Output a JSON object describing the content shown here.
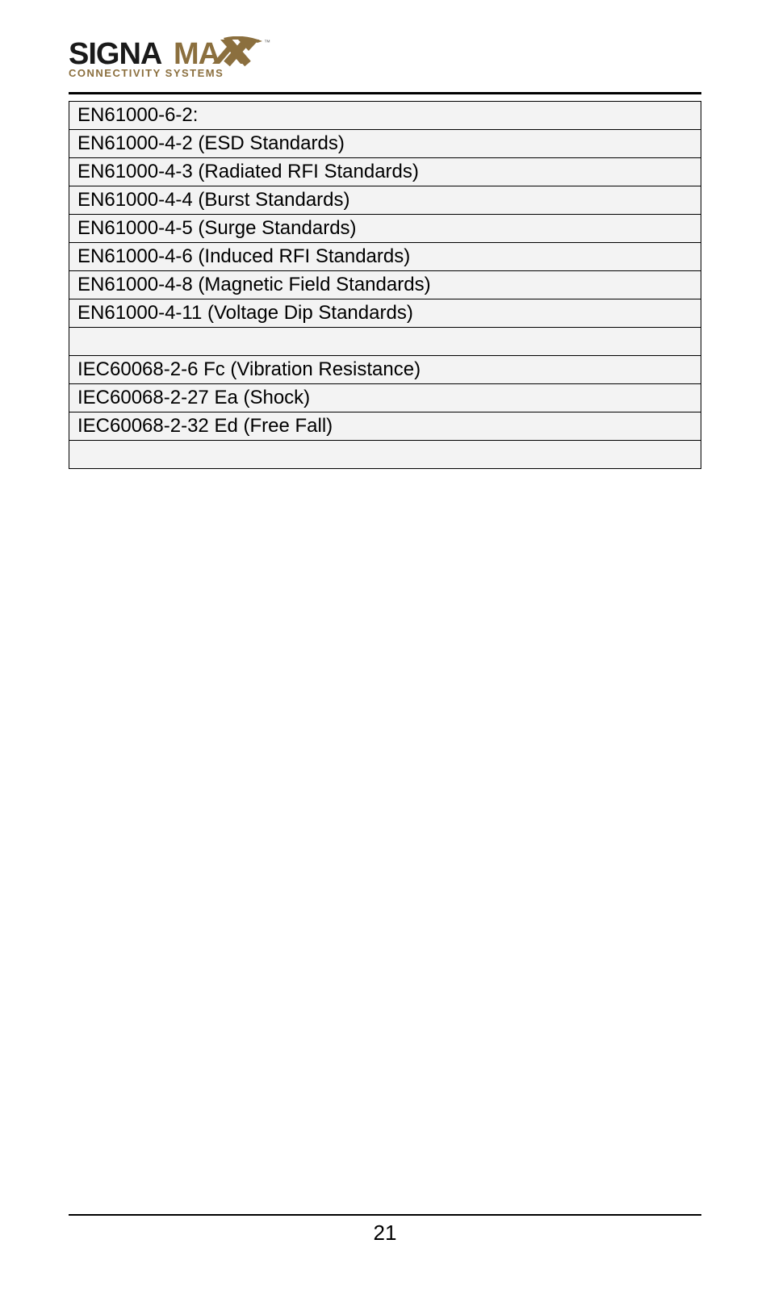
{
  "logo": {
    "text_main_1": "SIGNA",
    "text_main_2": "MAX",
    "tagline": "CONNECTIVITY SYSTEMS",
    "color_dark": "#1a1a1a",
    "color_gold": "#8b6f3e",
    "tm": "™"
  },
  "standards_table": {
    "background": "#f3f3f3",
    "border_color": "#000000",
    "font_size": 24,
    "rows": [
      "EN61000-6-2:",
      "EN61000-4-2 (ESD Standards)",
      "EN61000-4-3 (Radiated RFI Standards)",
      "EN61000-4-4 (Burst Standards)",
      "EN61000-4-5 (Surge Standards)",
      "EN61000-4-6 (Induced RFI Standards)",
      "EN61000-4-8 (Magnetic Field Standards)",
      "EN61000-4-11 (Voltage Dip Standards)",
      "",
      "IEC60068-2-6 Fc (Vibration Resistance)",
      "IEC60068-2-27 Ea (Shock)",
      "IEC60068-2-32 Ed (Free Fall)",
      ""
    ]
  },
  "footer": {
    "page_number": "21"
  }
}
